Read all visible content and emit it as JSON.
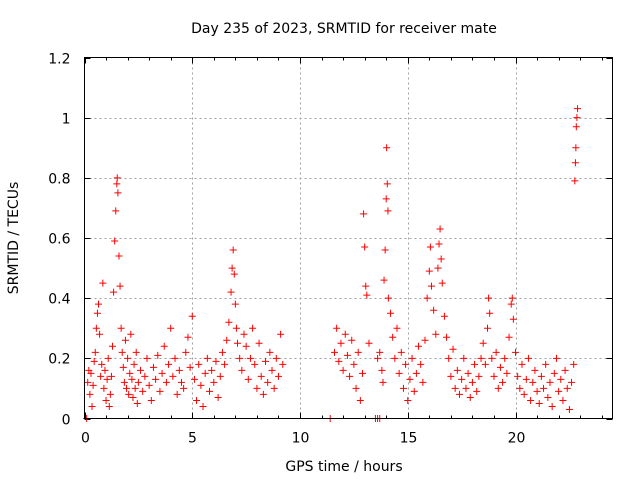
{
  "chart_data": {
    "type": "scatter",
    "title": "Day 235 of 2023, SRMTID for receiver mate",
    "xlabel": "GPS time / hours",
    "ylabel": "SRMTID / TECUs",
    "xlim": [
      0,
      24.5
    ],
    "ylim": [
      0,
      1.2
    ],
    "xticks": [
      0,
      5,
      10,
      15,
      20
    ],
    "xtick_labels": [
      "0",
      "5",
      "10",
      "15",
      "20"
    ],
    "yticks": [
      0,
      0.2,
      0.4,
      0.6,
      0.8,
      1,
      1.2
    ],
    "ytick_labels": [
      "0",
      "0.2",
      "0.4",
      "0.6",
      "0.8",
      "1",
      "1.2"
    ],
    "grid": true,
    "marker": "plus",
    "color": "#ff0000",
    "series": [
      {
        "name": "SRMTID",
        "points": [
          [
            0.1,
            0.0
          ],
          [
            0.15,
            0.12
          ],
          [
            0.2,
            0.16
          ],
          [
            0.25,
            0.08
          ],
          [
            0.3,
            0.15
          ],
          [
            0.35,
            0.04
          ],
          [
            0.4,
            0.11
          ],
          [
            0.45,
            0.19
          ],
          [
            0.5,
            0.22
          ],
          [
            0.55,
            0.3
          ],
          [
            0.6,
            0.35
          ],
          [
            0.65,
            0.38
          ],
          [
            0.7,
            0.28
          ],
          [
            0.75,
            0.14
          ],
          [
            0.8,
            0.18
          ],
          [
            0.85,
            0.45
          ],
          [
            0.9,
            0.1
          ],
          [
            0.95,
            0.16
          ],
          [
            1.0,
            0.06
          ],
          [
            1.05,
            0.13
          ],
          [
            1.1,
            0.2
          ],
          [
            1.15,
            0.04
          ],
          [
            1.2,
            0.08
          ],
          [
            1.25,
            0.14
          ],
          [
            1.3,
            0.24
          ],
          [
            1.35,
            0.42
          ],
          [
            1.4,
            0.59
          ],
          [
            1.45,
            0.69
          ],
          [
            1.5,
            0.78
          ],
          [
            1.52,
            0.8
          ],
          [
            1.55,
            0.75
          ],
          [
            1.6,
            0.54
          ],
          [
            1.65,
            0.44
          ],
          [
            1.7,
            0.3
          ],
          [
            1.75,
            0.22
          ],
          [
            1.8,
            0.17
          ],
          [
            1.85,
            0.12
          ],
          [
            1.9,
            0.26
          ],
          [
            1.95,
            0.1
          ],
          [
            2.0,
            0.2
          ],
          [
            2.05,
            0.08
          ],
          [
            2.1,
            0.15
          ],
          [
            2.15,
            0.28
          ],
          [
            2.2,
            0.13
          ],
          [
            2.25,
            0.07
          ],
          [
            2.3,
            0.18
          ],
          [
            2.35,
            0.1
          ],
          [
            2.4,
            0.22
          ],
          [
            2.45,
            0.05
          ],
          [
            2.5,
            0.12
          ],
          [
            2.6,
            0.16
          ],
          [
            2.7,
            0.09
          ],
          [
            2.8,
            0.14
          ],
          [
            2.9,
            0.2
          ],
          [
            3.0,
            0.11
          ],
          [
            3.1,
            0.06
          ],
          [
            3.2,
            0.17
          ],
          [
            3.3,
            0.13
          ],
          [
            3.4,
            0.21
          ],
          [
            3.5,
            0.09
          ],
          [
            3.6,
            0.15
          ],
          [
            3.7,
            0.24
          ],
          [
            3.8,
            0.12
          ],
          [
            3.9,
            0.18
          ],
          [
            4.0,
            0.3
          ],
          [
            4.1,
            0.14
          ],
          [
            4.2,
            0.2
          ],
          [
            4.3,
            0.08
          ],
          [
            4.4,
            0.16
          ],
          [
            4.5,
            0.12
          ],
          [
            4.6,
            0.1
          ],
          [
            4.7,
            0.22
          ],
          [
            4.8,
            0.27
          ],
          [
            4.9,
            0.17
          ],
          [
            5.0,
            0.34
          ],
          [
            5.1,
            0.13
          ],
          [
            5.2,
            0.06
          ],
          [
            5.3,
            0.18
          ],
          [
            5.4,
            0.11
          ],
          [
            5.5,
            0.04
          ],
          [
            5.6,
            0.15
          ],
          [
            5.7,
            0.2
          ],
          [
            5.8,
            0.09
          ],
          [
            5.9,
            0.16
          ],
          [
            6.0,
            0.12
          ],
          [
            6.1,
            0.19
          ],
          [
            6.2,
            0.07
          ],
          [
            6.3,
            0.14
          ],
          [
            6.4,
            0.22
          ],
          [
            6.5,
            0.18
          ],
          [
            6.6,
            0.26
          ],
          [
            6.7,
            0.32
          ],
          [
            6.8,
            0.42
          ],
          [
            6.85,
            0.5
          ],
          [
            6.9,
            0.56
          ],
          [
            6.95,
            0.48
          ],
          [
            7.0,
            0.38
          ],
          [
            7.05,
            0.3
          ],
          [
            7.1,
            0.25
          ],
          [
            7.2,
            0.2
          ],
          [
            7.3,
            0.16
          ],
          [
            7.4,
            0.28
          ],
          [
            7.5,
            0.24
          ],
          [
            7.6,
            0.13
          ],
          [
            7.7,
            0.2
          ],
          [
            7.8,
            0.3
          ],
          [
            7.9,
            0.18
          ],
          [
            8.0,
            0.1
          ],
          [
            8.1,
            0.25
          ],
          [
            8.2,
            0.14
          ],
          [
            8.3,
            0.08
          ],
          [
            8.4,
            0.19
          ],
          [
            8.5,
            0.12
          ],
          [
            8.6,
            0.22
          ],
          [
            8.7,
            0.16
          ],
          [
            8.8,
            0.1
          ],
          [
            8.9,
            0.2
          ],
          [
            9.0,
            0.14
          ],
          [
            9.1,
            0.28
          ],
          [
            9.2,
            0.18
          ],
          [
            11.4,
            0.0
          ],
          [
            11.6,
            0.22
          ],
          [
            11.7,
            0.3
          ],
          [
            11.8,
            0.19
          ],
          [
            11.9,
            0.25
          ],
          [
            12.0,
            0.16
          ],
          [
            12.1,
            0.28
          ],
          [
            12.2,
            0.21
          ],
          [
            12.3,
            0.14
          ],
          [
            12.4,
            0.26
          ],
          [
            12.5,
            0.18
          ],
          [
            12.6,
            0.1
          ],
          [
            12.7,
            0.22
          ],
          [
            12.8,
            0.06
          ],
          [
            12.9,
            0.15
          ],
          [
            12.95,
            0.68
          ],
          [
            13.0,
            0.57
          ],
          [
            13.05,
            0.44
          ],
          [
            13.1,
            0.41
          ],
          [
            13.2,
            0.25
          ],
          [
            13.5,
            0.0
          ],
          [
            13.6,
            0.0
          ],
          [
            13.7,
            0.0
          ],
          [
            13.6,
            0.2
          ],
          [
            13.7,
            0.22
          ],
          [
            13.8,
            0.16
          ],
          [
            13.85,
            0.12
          ],
          [
            13.9,
            0.46
          ],
          [
            13.95,
            0.56
          ],
          [
            14.0,
            0.73
          ],
          [
            14.02,
            0.9
          ],
          [
            14.05,
            0.78
          ],
          [
            14.08,
            0.69
          ],
          [
            14.1,
            0.4
          ],
          [
            14.2,
            0.35
          ],
          [
            14.3,
            0.27
          ],
          [
            14.4,
            0.2
          ],
          [
            14.5,
            0.3
          ],
          [
            14.6,
            0.15
          ],
          [
            14.7,
            0.22
          ],
          [
            14.8,
            0.1
          ],
          [
            14.9,
            0.18
          ],
          [
            15.0,
            0.06
          ],
          [
            15.1,
            0.13
          ],
          [
            15.2,
            0.2
          ],
          [
            15.3,
            0.09
          ],
          [
            15.4,
            0.15
          ],
          [
            15.5,
            0.24
          ],
          [
            15.6,
            0.18
          ],
          [
            15.7,
            0.12
          ],
          [
            15.8,
            0.26
          ],
          [
            15.9,
            0.4
          ],
          [
            16.0,
            0.49
          ],
          [
            16.05,
            0.57
          ],
          [
            16.1,
            0.44
          ],
          [
            16.2,
            0.36
          ],
          [
            16.3,
            0.28
          ],
          [
            16.4,
            0.5
          ],
          [
            16.45,
            0.58
          ],
          [
            16.5,
            0.63
          ],
          [
            16.55,
            0.53
          ],
          [
            16.6,
            0.45
          ],
          [
            16.7,
            0.34
          ],
          [
            16.8,
            0.27
          ],
          [
            16.9,
            0.2
          ],
          [
            17.0,
            0.14
          ],
          [
            17.1,
            0.23
          ],
          [
            17.2,
            0.1
          ],
          [
            17.3,
            0.16
          ],
          [
            17.4,
            0.08
          ],
          [
            17.5,
            0.13
          ],
          [
            17.6,
            0.2
          ],
          [
            17.7,
            0.1
          ],
          [
            17.8,
            0.15
          ],
          [
            17.9,
            0.07
          ],
          [
            18.0,
            0.12
          ],
          [
            18.1,
            0.18
          ],
          [
            18.2,
            0.09
          ],
          [
            18.3,
            0.14
          ],
          [
            18.4,
            0.2
          ],
          [
            18.5,
            0.25
          ],
          [
            18.6,
            0.18
          ],
          [
            18.7,
            0.3
          ],
          [
            18.75,
            0.4
          ],
          [
            18.8,
            0.35
          ],
          [
            18.9,
            0.2
          ],
          [
            19.0,
            0.14
          ],
          [
            19.1,
            0.22
          ],
          [
            19.2,
            0.1
          ],
          [
            19.3,
            0.17
          ],
          [
            19.4,
            0.12
          ],
          [
            19.5,
            0.2
          ],
          [
            19.6,
            0.15
          ],
          [
            19.7,
            0.27
          ],
          [
            19.8,
            0.38
          ],
          [
            19.85,
            0.4
          ],
          [
            19.9,
            0.33
          ],
          [
            20.0,
            0.22
          ],
          [
            20.1,
            0.14
          ],
          [
            20.2,
            0.1
          ],
          [
            20.3,
            0.18
          ],
          [
            20.4,
            0.08
          ],
          [
            20.5,
            0.13
          ],
          [
            20.6,
            0.2
          ],
          [
            20.7,
            0.06
          ],
          [
            20.8,
            0.12
          ],
          [
            20.9,
            0.16
          ],
          [
            21.0,
            0.09
          ],
          [
            21.1,
            0.05
          ],
          [
            21.2,
            0.14
          ],
          [
            21.3,
            0.1
          ],
          [
            21.4,
            0.18
          ],
          [
            21.5,
            0.07
          ],
          [
            21.6,
            0.12
          ],
          [
            21.7,
            0.04
          ],
          [
            21.8,
            0.15
          ],
          [
            21.9,
            0.2
          ],
          [
            22.0,
            0.09
          ],
          [
            22.1,
            0.13
          ],
          [
            22.2,
            0.06
          ],
          [
            22.3,
            0.16
          ],
          [
            22.4,
            0.1
          ],
          [
            22.5,
            0.03
          ],
          [
            22.6,
            0.12
          ],
          [
            22.7,
            0.18
          ],
          [
            22.75,
            0.79
          ],
          [
            22.78,
            0.85
          ],
          [
            22.8,
            0.9
          ],
          [
            22.82,
            0.97
          ],
          [
            22.85,
            1.0
          ],
          [
            22.88,
            1.03
          ]
        ]
      }
    ]
  }
}
